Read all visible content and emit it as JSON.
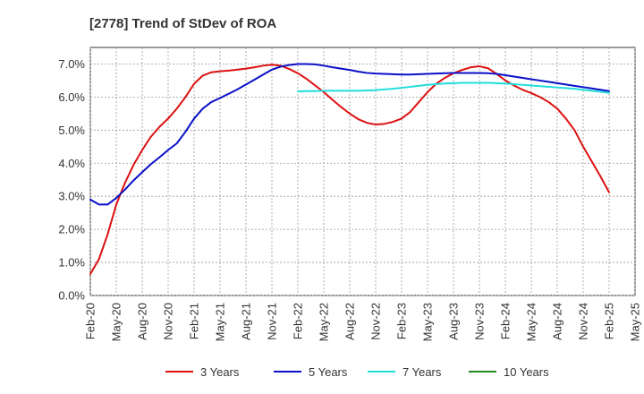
{
  "title": "[2778]  Trend of StDev of ROA",
  "chart_data": {
    "type": "line",
    "title": "[2778]  Trend of StDev of ROA",
    "xlabel": "",
    "ylabel": "",
    "ylim": [
      0,
      7.5
    ],
    "yticks": [
      0,
      1,
      2,
      3,
      4,
      5,
      6,
      7
    ],
    "ytick_labels": [
      "0.0%",
      "1.0%",
      "2.0%",
      "3.0%",
      "4.0%",
      "5.0%",
      "6.0%",
      "7.0%"
    ],
    "x_tick_labels": [
      "Feb-20",
      "May-20",
      "Aug-20",
      "Nov-20",
      "Feb-21",
      "May-21",
      "Aug-21",
      "Nov-21",
      "Feb-22",
      "May-22",
      "Aug-22",
      "Nov-22",
      "Feb-23",
      "May-23",
      "Aug-23",
      "Nov-23",
      "Feb-24",
      "May-24",
      "Aug-24",
      "Nov-24",
      "Feb-25",
      "May-25"
    ],
    "grid": true,
    "legend_position": "bottom",
    "series": [
      {
        "name": "3 Years",
        "color": "#dd1111",
        "x": [
          "Feb-20",
          "Mar-20",
          "Apr-20",
          "May-20",
          "Jun-20",
          "Jul-20",
          "Aug-20",
          "Sep-20",
          "Oct-20",
          "Nov-20",
          "Dec-20",
          "Jan-21",
          "Feb-21",
          "Mar-21",
          "Apr-21",
          "May-21",
          "Jun-21",
          "Jul-21",
          "Aug-21",
          "Sep-21",
          "Oct-21",
          "Nov-21",
          "Dec-21",
          "Jan-22",
          "Feb-22",
          "Mar-22",
          "Apr-22",
          "May-22",
          "Jun-22",
          "Jul-22",
          "Aug-22",
          "Sep-22",
          "Oct-22",
          "Nov-22",
          "Dec-22",
          "Jan-23",
          "Feb-23",
          "Mar-23",
          "Apr-23",
          "May-23",
          "Jun-23",
          "Jul-23",
          "Aug-23",
          "Sep-23",
          "Oct-23",
          "Nov-23",
          "Dec-23",
          "Jan-24",
          "Feb-24",
          "Mar-24",
          "Apr-24",
          "May-24",
          "Jun-24",
          "Jul-24",
          "Aug-24",
          "Sep-24",
          "Oct-24",
          "Nov-24",
          "Dec-24",
          "Jan-25",
          "Feb-25"
        ],
        "values": [
          0.65,
          1.1,
          1.85,
          2.75,
          3.4,
          3.95,
          4.4,
          4.8,
          5.1,
          5.35,
          5.65,
          6.0,
          6.4,
          6.65,
          6.75,
          6.78,
          6.8,
          6.83,
          6.86,
          6.9,
          6.95,
          6.98,
          6.95,
          6.85,
          6.72,
          6.55,
          6.35,
          6.15,
          5.92,
          5.7,
          5.5,
          5.33,
          5.22,
          5.17,
          5.19,
          5.25,
          5.35,
          5.55,
          5.85,
          6.15,
          6.4,
          6.58,
          6.72,
          6.82,
          6.9,
          6.93,
          6.87,
          6.7,
          6.5,
          6.35,
          6.22,
          6.12,
          6.0,
          5.85,
          5.65,
          5.35,
          5.0,
          4.5,
          4.05,
          3.6,
          3.12
        ]
      },
      {
        "name": "5 Years",
        "color": "#0a10c8",
        "x": [
          "Feb-20",
          "Mar-20",
          "Apr-20",
          "May-20",
          "Jun-20",
          "Jul-20",
          "Aug-20",
          "Sep-20",
          "Oct-20",
          "Nov-20",
          "Dec-20",
          "Jan-21",
          "Feb-21",
          "Mar-21",
          "Apr-21",
          "May-21",
          "Jun-21",
          "Jul-21",
          "Aug-21",
          "Sep-21",
          "Oct-21",
          "Nov-21",
          "Dec-21",
          "Jan-22",
          "Feb-22",
          "Mar-22",
          "Apr-22",
          "May-22",
          "Jun-22",
          "Jul-22",
          "Aug-22",
          "Sep-22",
          "Oct-22",
          "Nov-22",
          "Dec-22",
          "Jan-23",
          "Feb-23",
          "Mar-23",
          "Apr-23",
          "May-23",
          "Jun-23",
          "Jul-23",
          "Aug-23",
          "Sep-23",
          "Oct-23",
          "Nov-23",
          "Dec-23",
          "Jan-24",
          "Feb-24",
          "Mar-24",
          "Apr-24",
          "May-24",
          "Jun-24",
          "Jul-24",
          "Aug-24",
          "Sep-24",
          "Oct-24",
          "Nov-24",
          "Dec-24",
          "Jan-25",
          "Feb-25"
        ],
        "values": [
          2.9,
          2.75,
          2.75,
          2.95,
          3.2,
          3.48,
          3.73,
          3.97,
          4.18,
          4.4,
          4.6,
          4.95,
          5.35,
          5.65,
          5.85,
          5.97,
          6.1,
          6.23,
          6.38,
          6.53,
          6.68,
          6.83,
          6.92,
          6.97,
          7.0,
          7.0,
          6.99,
          6.95,
          6.9,
          6.86,
          6.82,
          6.77,
          6.73,
          6.71,
          6.7,
          6.69,
          6.68,
          6.68,
          6.69,
          6.7,
          6.71,
          6.72,
          6.73,
          6.73,
          6.73,
          6.73,
          6.72,
          6.7,
          6.66,
          6.62,
          6.58,
          6.54,
          6.5,
          6.46,
          6.42,
          6.38,
          6.34,
          6.3,
          6.26,
          6.22,
          6.18
        ]
      },
      {
        "name": "7 Years",
        "color": "#22dddd",
        "x": [
          "Feb-22",
          "Mar-22",
          "Apr-22",
          "May-22",
          "Jun-22",
          "Jul-22",
          "Aug-22",
          "Sep-22",
          "Oct-22",
          "Nov-22",
          "Dec-22",
          "Jan-23",
          "Feb-23",
          "Mar-23",
          "Apr-23",
          "May-23",
          "Jun-23",
          "Jul-23",
          "Aug-23",
          "Sep-23",
          "Oct-23",
          "Nov-23",
          "Dec-23",
          "Jan-24",
          "Feb-24",
          "Mar-24",
          "Apr-24",
          "May-24",
          "Jun-24",
          "Jul-24",
          "Aug-24",
          "Sep-24",
          "Oct-24",
          "Nov-24",
          "Dec-24",
          "Jan-25",
          "Feb-25"
        ],
        "values": [
          6.17,
          6.18,
          6.18,
          6.19,
          6.19,
          6.19,
          6.19,
          6.19,
          6.2,
          6.21,
          6.23,
          6.25,
          6.28,
          6.31,
          6.34,
          6.37,
          6.39,
          6.41,
          6.42,
          6.43,
          6.43,
          6.43,
          6.43,
          6.42,
          6.41,
          6.39,
          6.37,
          6.35,
          6.33,
          6.31,
          6.29,
          6.27,
          6.25,
          6.22,
          6.19,
          6.16,
          6.13
        ]
      },
      {
        "name": "10 Years",
        "color": "#228822",
        "x": [],
        "values": []
      }
    ]
  }
}
